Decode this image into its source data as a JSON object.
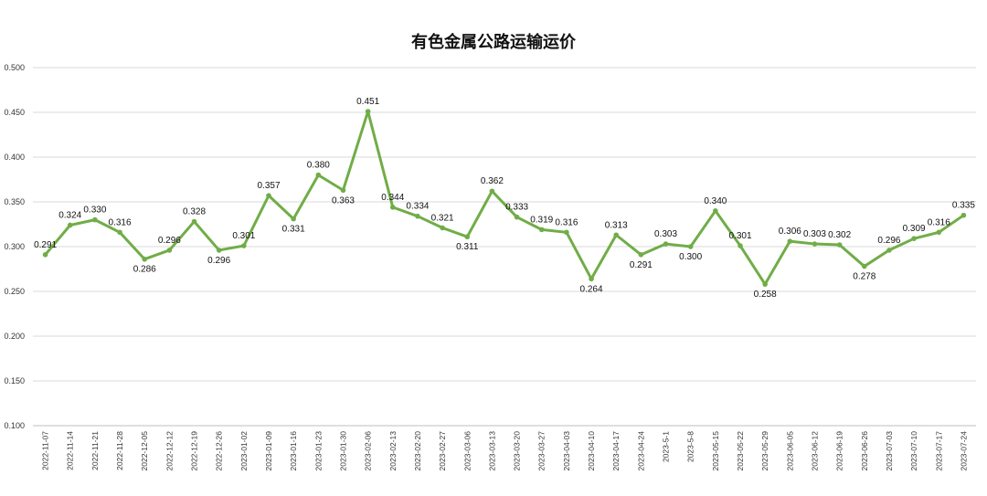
{
  "chart_data": {
    "type": "line",
    "title": "有色金属公路运输运价",
    "xlabel": "",
    "ylabel": "",
    "ylim": [
      0.1,
      0.5
    ],
    "yticks": [
      "0.100",
      "0.150",
      "0.200",
      "0.250",
      "0.300",
      "0.350",
      "0.400",
      "0.450",
      "0.500"
    ],
    "grid": true,
    "line_color": "#70AD47",
    "categories": [
      "2022-11-07",
      "2022-11-14",
      "2022-11-21",
      "2022-11-28",
      "2022-12-05",
      "2022-12-12",
      "2022-12-19",
      "2022-12-26",
      "2023-01-02",
      "2023-01-09",
      "2023-01-16",
      "2023-01-23",
      "2023-01-30",
      "2023-02-06",
      "2023-02-13",
      "2023-02-20",
      "2023-02-27",
      "2023-03-06",
      "2023-03-13",
      "2023-03-20",
      "2023-03-27",
      "2023-04-03",
      "2023-04-10",
      "2023-04-17",
      "2023-04-24",
      "2023-5-1",
      "2023-5-8",
      "2023-05-15",
      "2023-05-22",
      "2023-05-29",
      "2023-06-05",
      "2023-06-12",
      "2023-06-19",
      "2023-06-26",
      "2023-07-03",
      "2023-07-10",
      "2023-07-17",
      "2023-07-24"
    ],
    "series": [
      {
        "values": [
          0.291,
          0.324,
          0.33,
          0.316,
          0.286,
          0.296,
          0.328,
          0.296,
          0.301,
          0.357,
          0.331,
          0.38,
          0.363,
          0.451,
          0.344,
          0.334,
          0.321,
          0.311,
          0.362,
          0.333,
          0.319,
          0.316,
          0.264,
          0.313,
          0.291,
          0.303,
          0.3,
          0.34,
          0.301,
          0.258,
          0.306,
          0.303,
          0.302,
          0.278,
          0.296,
          0.309,
          0.316,
          0.335
        ],
        "labels": [
          "0.291",
          "0.324",
          "0.330",
          "0.316",
          "0.286",
          "0.296",
          "0.328",
          "0.296",
          "0.301",
          "0.357",
          "0.331",
          "0.380",
          "0.363",
          "0.451",
          "0.344",
          "0.334",
          "0.321",
          "0.311",
          "0.362",
          "0.333",
          "0.319",
          "0.316",
          "0.264",
          "0.313",
          "0.291",
          "0.303",
          "0.300",
          "0.340",
          "0.301",
          "0.258",
          "0.306",
          "0.303",
          "0.302",
          "0.278",
          "0.296",
          "0.309",
          "0.316",
          "0.335"
        ]
      }
    ]
  }
}
